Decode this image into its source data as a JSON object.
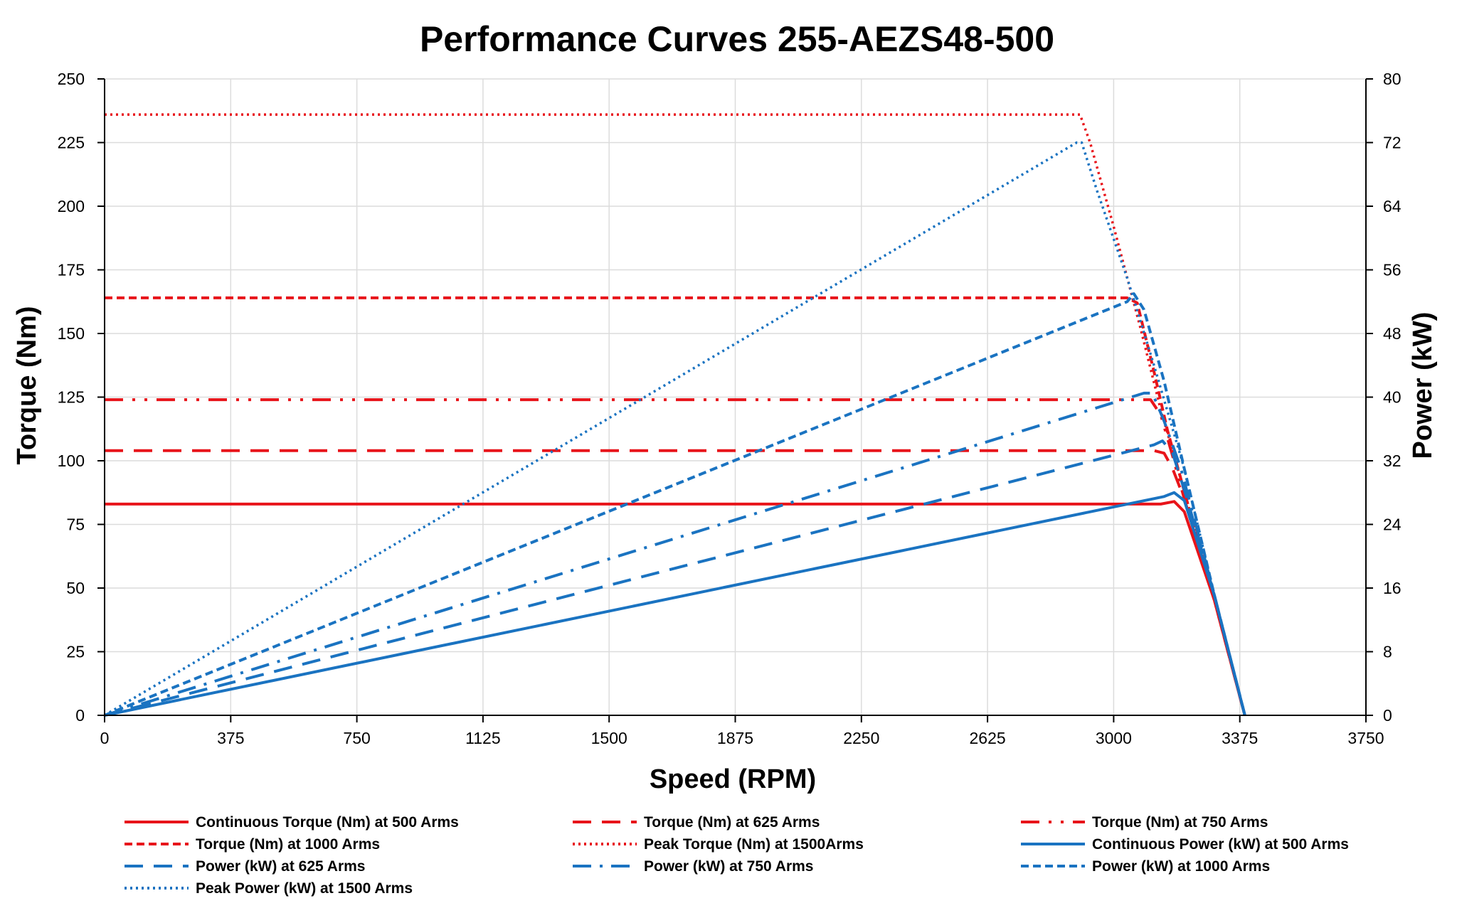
{
  "chart_data": {
    "type": "line",
    "title": "Performance Curves 255-AEZS48-500",
    "xlabel": "Speed (RPM)",
    "ylabel": "Torque (Nm)",
    "y2label": "Power (kW)",
    "xlim": [
      0,
      3750
    ],
    "ylim": [
      0,
      250
    ],
    "y2lim": [
      0,
      80
    ],
    "x_ticks": [
      0,
      375,
      750,
      1125,
      1500,
      1875,
      2250,
      2625,
      3000,
      3375,
      3750
    ],
    "y_ticks": [
      0,
      25,
      50,
      75,
      100,
      125,
      150,
      175,
      200,
      225,
      250
    ],
    "y2_ticks": [
      0,
      8,
      16,
      24,
      32,
      40,
      48,
      56,
      64,
      72,
      80
    ],
    "grid": true,
    "legend_position": "bottom",
    "colors": {
      "torque": "#e8141a",
      "power": "#1a73c1"
    },
    "series": [
      {
        "name": "Continuous Torque (Nm) at 500 Arms",
        "axis": "left",
        "color": "#e8141a",
        "style": "solid",
        "points": [
          [
            0,
            83
          ],
          [
            3140,
            83
          ],
          [
            3180,
            84
          ],
          [
            3210,
            80
          ],
          [
            3300,
            45
          ],
          [
            3390,
            0
          ]
        ]
      },
      {
        "name": "Torque (Nm) at 625 Arms",
        "axis": "left",
        "color": "#e8141a",
        "style": "longdash",
        "points": [
          [
            0,
            104
          ],
          [
            3120,
            104
          ],
          [
            3150,
            103
          ],
          [
            3175,
            97
          ],
          [
            3210,
            85
          ],
          [
            3300,
            45
          ],
          [
            3390,
            0
          ]
        ]
      },
      {
        "name": "Torque (Nm) at 750 Arms",
        "axis": "left",
        "color": "#e8141a",
        "style": "dashdotdot",
        "points": [
          [
            0,
            124
          ],
          [
            3110,
            124
          ],
          [
            3140,
            118
          ],
          [
            3175,
            102
          ],
          [
            3210,
            85
          ],
          [
            3300,
            45
          ],
          [
            3390,
            0
          ]
        ]
      },
      {
        "name": "Torque (Nm) at 1000 Arms",
        "axis": "left",
        "color": "#e8141a",
        "style": "shortdash",
        "points": [
          [
            0,
            164
          ],
          [
            3040,
            164
          ],
          [
            3070,
            162
          ],
          [
            3120,
            135
          ],
          [
            3160,
            112
          ],
          [
            3210,
            88
          ],
          [
            3300,
            45
          ],
          [
            3390,
            0
          ]
        ]
      },
      {
        "name": "Peak Torque (Nm) at 1500Arms",
        "axis": "left",
        "color": "#e8141a",
        "style": "dotted",
        "points": [
          [
            0,
            236
          ],
          [
            2870,
            236
          ],
          [
            2900,
            236
          ],
          [
            2930,
            225
          ],
          [
            3000,
            192
          ],
          [
            3080,
            152
          ],
          [
            3140,
            120
          ],
          [
            3210,
            88
          ],
          [
            3300,
            45
          ],
          [
            3390,
            0
          ]
        ]
      },
      {
        "name": "Continuous Power (kW) at 500 Arms",
        "axis": "right",
        "color": "#1a73c1",
        "style": "solid",
        "points": [
          [
            0,
            0
          ],
          [
            3150,
            27.5
          ],
          [
            3180,
            28
          ],
          [
            3210,
            27
          ],
          [
            3300,
            15
          ],
          [
            3390,
            0
          ]
        ]
      },
      {
        "name": "Power (kW) at 625 Arms",
        "axis": "right",
        "color": "#1a73c1",
        "style": "longdash",
        "points": [
          [
            0,
            0
          ],
          [
            3120,
            34
          ],
          [
            3145,
            34.5
          ],
          [
            3175,
            33
          ],
          [
            3220,
            27
          ],
          [
            3300,
            15
          ],
          [
            3390,
            0
          ]
        ]
      },
      {
        "name": "Power (kW) at 750 Arms",
        "axis": "right",
        "color": "#1a73c1",
        "style": "dashdot",
        "points": [
          [
            0,
            0
          ],
          [
            3090,
            40.5
          ],
          [
            3115,
            40.5
          ],
          [
            3150,
            37
          ],
          [
            3200,
            31
          ],
          [
            3300,
            15
          ],
          [
            3390,
            0
          ]
        ]
      },
      {
        "name": "Power (kW) at 1000 Arms",
        "axis": "right",
        "color": "#1a73c1",
        "style": "shortdash",
        "points": [
          [
            0,
            0
          ],
          [
            3040,
            52
          ],
          [
            3060,
            53
          ],
          [
            3090,
            51
          ],
          [
            3150,
            42
          ],
          [
            3210,
            31
          ],
          [
            3300,
            15
          ],
          [
            3390,
            0
          ]
        ]
      },
      {
        "name": "Peak Power (kW) at 1500 Arms",
        "axis": "right",
        "color": "#1a73c1",
        "style": "dotted",
        "points": [
          [
            0,
            0
          ],
          [
            2890,
            72
          ],
          [
            2905,
            72
          ],
          [
            2950,
            66
          ],
          [
            3040,
            55
          ],
          [
            3120,
            44
          ],
          [
            3210,
            31
          ],
          [
            3300,
            15
          ],
          [
            3390,
            0
          ]
        ]
      }
    ]
  }
}
